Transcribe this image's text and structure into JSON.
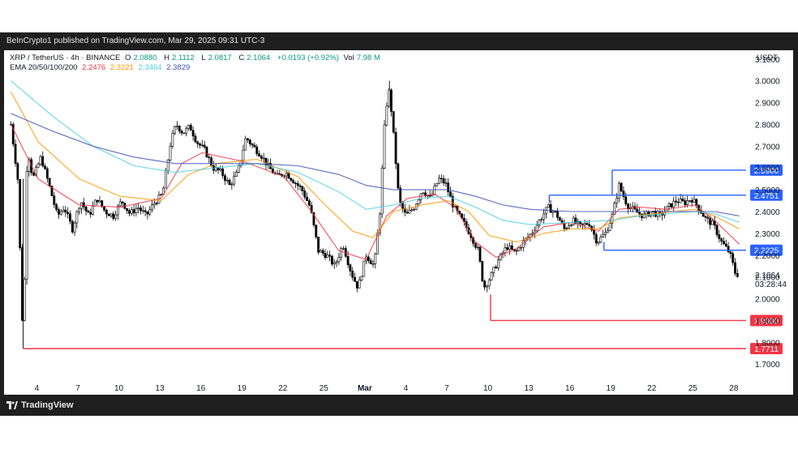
{
  "banner": "BeInCrypto1 published on TradingView.com, Mar 29, 2025 09:31 UTC-3",
  "logo_text": "TradingView",
  "legend": {
    "symbol": "XRP / TetherUS · 4h · BINANCE",
    "open_label": "O",
    "open": "2.0880",
    "high_label": "H",
    "high": "2.1112",
    "low_label": "L",
    "low": "2.0817",
    "close_label": "C",
    "close": "2.1064",
    "change": "+0.0193 (+0.92%)",
    "vol_label": "Vol",
    "vol": "7.98 M",
    "ema_label": "EMA 20/50/100/200",
    "ema20": "2.2476",
    "ema50": "2.3221",
    "ema100": "2.3464",
    "ema200": "2.3829"
  },
  "currency": "USDT",
  "colors": {
    "up": "#ffffff",
    "down": "#000000",
    "ema20": "#f23645",
    "ema50": "#ff9800",
    "ema100": "#4dd0e1",
    "ema200": "#3f51b5",
    "resistance": "#2962ff",
    "support": "#f23645"
  },
  "chart_data": {
    "type": "candlestick",
    "timeframe": "4h",
    "ylim": [
      1.66,
      3.14
    ],
    "y_ticks": [
      "3.1000",
      "3.0000",
      "2.9000",
      "2.8000",
      "2.7000",
      "2.6000",
      "2.5000",
      "2.4000",
      "2.3000",
      "2.2000",
      "2.1000",
      "2.0000",
      "1.9000",
      "1.8000",
      "1.7000"
    ],
    "x_ticks": [
      "4",
      "7",
      "10",
      "13",
      "16",
      "19",
      "22",
      "25",
      "Mar",
      "4",
      "7",
      "10",
      "13",
      "16",
      "19",
      "22",
      "25",
      "28"
    ],
    "x_tick_pos": [
      1.9,
      4.9,
      7.9,
      10.9,
      13.9,
      16.9,
      19.9,
      22.9,
      25.9,
      28.9,
      31.9,
      34.9,
      37.9,
      40.9,
      43.9,
      46.9,
      49.9,
      52.9
    ],
    "x_range": [
      -0.5,
      53.8
    ],
    "price_path": [
      [
        0,
        2.8
      ],
      [
        0.5,
        2.55
      ],
      [
        0.9,
        1.78
      ],
      [
        1.2,
        2.7
      ],
      [
        1.6,
        2.55
      ],
      [
        2.2,
        2.65
      ],
      [
        2.8,
        2.52
      ],
      [
        3.4,
        2.38
      ],
      [
        3.9,
        2.42
      ],
      [
        4.5,
        2.32
      ],
      [
        5.1,
        2.45
      ],
      [
        5.7,
        2.38
      ],
      [
        6.3,
        2.46
      ],
      [
        6.9,
        2.4
      ],
      [
        7.5,
        2.38
      ],
      [
        8.1,
        2.45
      ],
      [
        8.7,
        2.39
      ],
      [
        9.3,
        2.42
      ],
      [
        9.9,
        2.38
      ],
      [
        10.5,
        2.44
      ],
      [
        11.1,
        2.48
      ],
      [
        11.7,
        2.72
      ],
      [
        12.1,
        2.8
      ],
      [
        12.6,
        2.76
      ],
      [
        13.1,
        2.79
      ],
      [
        13.6,
        2.72
      ],
      [
        14.2,
        2.68
      ],
      [
        14.8,
        2.6
      ],
      [
        15.4,
        2.58
      ],
      [
        16.0,
        2.52
      ],
      [
        16.6,
        2.58
      ],
      [
        17.2,
        2.74
      ],
      [
        17.7,
        2.7
      ],
      [
        18.3,
        2.66
      ],
      [
        18.9,
        2.6
      ],
      [
        19.5,
        2.56
      ],
      [
        20.1,
        2.58
      ],
      [
        20.7,
        2.54
      ],
      [
        21.3,
        2.5
      ],
      [
        21.9,
        2.42
      ],
      [
        22.5,
        2.22
      ],
      [
        23.1,
        2.2
      ],
      [
        23.7,
        2.15
      ],
      [
        24.3,
        2.25
      ],
      [
        24.9,
        2.12
      ],
      [
        25.4,
        2.05
      ],
      [
        26.0,
        2.2
      ],
      [
        26.6,
        2.15
      ],
      [
        27.0,
        2.4
      ],
      [
        27.4,
        2.86
      ],
      [
        27.7,
        2.96
      ],
      [
        28.0,
        2.75
      ],
      [
        28.4,
        2.45
      ],
      [
        28.9,
        2.38
      ],
      [
        29.5,
        2.42
      ],
      [
        30.1,
        2.5
      ],
      [
        30.7,
        2.46
      ],
      [
        31.3,
        2.55
      ],
      [
        31.8,
        2.53
      ],
      [
        32.4,
        2.42
      ],
      [
        33.0,
        2.36
      ],
      [
        33.6,
        2.3
      ],
      [
        34.2,
        2.22
      ],
      [
        34.6,
        2.05
      ],
      [
        35.1,
        2.1
      ],
      [
        35.7,
        2.18
      ],
      [
        36.3,
        2.24
      ],
      [
        36.9,
        2.21
      ],
      [
        37.5,
        2.26
      ],
      [
        38.1,
        2.3
      ],
      [
        38.7,
        2.36
      ],
      [
        39.3,
        2.42
      ],
      [
        39.9,
        2.39
      ],
      [
        40.5,
        2.32
      ],
      [
        41.1,
        2.36
      ],
      [
        41.7,
        2.33
      ],
      [
        42.3,
        2.35
      ],
      [
        42.9,
        2.26
      ],
      [
        43.5,
        2.3
      ],
      [
        44.0,
        2.38
      ],
      [
        44.5,
        2.52
      ],
      [
        45.1,
        2.43
      ],
      [
        45.7,
        2.4
      ],
      [
        46.3,
        2.38
      ],
      [
        46.9,
        2.4
      ],
      [
        47.5,
        2.38
      ],
      [
        48.1,
        2.42
      ],
      [
        48.7,
        2.45
      ],
      [
        49.3,
        2.44
      ],
      [
        49.8,
        2.46
      ],
      [
        50.3,
        2.42
      ],
      [
        50.8,
        2.37
      ],
      [
        51.4,
        2.34
      ],
      [
        52.0,
        2.26
      ],
      [
        52.6,
        2.21
      ],
      [
        53.0,
        2.12
      ],
      [
        53.3,
        2.1064
      ]
    ],
    "series": [
      {
        "name": "EMA 20",
        "color": "#f23645",
        "points": [
          [
            0,
            2.8
          ],
          [
            2,
            2.55
          ],
          [
            5,
            2.43
          ],
          [
            8,
            2.42
          ],
          [
            11,
            2.46
          ],
          [
            12.5,
            2.62
          ],
          [
            14,
            2.67
          ],
          [
            17,
            2.63
          ],
          [
            20,
            2.56
          ],
          [
            22,
            2.4
          ],
          [
            24,
            2.22
          ],
          [
            26,
            2.18
          ],
          [
            27.5,
            2.38
          ],
          [
            29,
            2.46
          ],
          [
            31,
            2.48
          ],
          [
            32.5,
            2.42
          ],
          [
            34,
            2.26
          ],
          [
            35.5,
            2.19
          ],
          [
            37,
            2.23
          ],
          [
            39,
            2.33
          ],
          [
            41,
            2.35
          ],
          [
            43,
            2.31
          ],
          [
            44.5,
            2.41
          ],
          [
            46,
            2.42
          ],
          [
            48,
            2.41
          ],
          [
            50,
            2.43
          ],
          [
            51.5,
            2.36
          ],
          [
            53.3,
            2.25
          ]
        ]
      },
      {
        "name": "EMA 50",
        "color": "#ff9800",
        "points": [
          [
            0,
            2.95
          ],
          [
            2,
            2.72
          ],
          [
            5,
            2.55
          ],
          [
            8,
            2.47
          ],
          [
            11,
            2.45
          ],
          [
            13,
            2.57
          ],
          [
            15,
            2.62
          ],
          [
            18,
            2.64
          ],
          [
            21,
            2.56
          ],
          [
            23,
            2.43
          ],
          [
            25,
            2.31
          ],
          [
            26.5,
            2.28
          ],
          [
            28,
            2.4
          ],
          [
            30,
            2.43
          ],
          [
            32,
            2.45
          ],
          [
            33.5,
            2.4
          ],
          [
            35,
            2.29
          ],
          [
            37,
            2.26
          ],
          [
            39,
            2.3
          ],
          [
            41,
            2.32
          ],
          [
            43,
            2.32
          ],
          [
            44.5,
            2.37
          ],
          [
            47,
            2.39
          ],
          [
            50,
            2.41
          ],
          [
            51.5,
            2.38
          ],
          [
            53.3,
            2.32
          ]
        ]
      },
      {
        "name": "EMA 100",
        "color": "#4dd0e1",
        "points": [
          [
            0,
            3.0
          ],
          [
            3,
            2.84
          ],
          [
            6,
            2.7
          ],
          [
            9,
            2.61
          ],
          [
            12,
            2.58
          ],
          [
            15,
            2.6
          ],
          [
            18,
            2.62
          ],
          [
            21,
            2.58
          ],
          [
            24,
            2.49
          ],
          [
            26,
            2.41
          ],
          [
            28,
            2.43
          ],
          [
            30,
            2.46
          ],
          [
            32,
            2.47
          ],
          [
            34,
            2.42
          ],
          [
            36,
            2.36
          ],
          [
            38,
            2.34
          ],
          [
            41,
            2.35
          ],
          [
            44,
            2.36
          ],
          [
            46,
            2.38
          ],
          [
            48,
            2.39
          ],
          [
            50,
            2.4
          ],
          [
            51.5,
            2.39
          ],
          [
            53.3,
            2.35
          ]
        ]
      },
      {
        "name": "EMA 200",
        "color": "#3f51b5",
        "points": [
          [
            0,
            2.85
          ],
          [
            3,
            2.77
          ],
          [
            6,
            2.7
          ],
          [
            9,
            2.65
          ],
          [
            12,
            2.62
          ],
          [
            15,
            2.62
          ],
          [
            18,
            2.62
          ],
          [
            21,
            2.61
          ],
          [
            24,
            2.57
          ],
          [
            26,
            2.52
          ],
          [
            28,
            2.5
          ],
          [
            30,
            2.5
          ],
          [
            32,
            2.5
          ],
          [
            34,
            2.47
          ],
          [
            36,
            2.43
          ],
          [
            38,
            2.41
          ],
          [
            41,
            2.4
          ],
          [
            44,
            2.4
          ],
          [
            46,
            2.4
          ],
          [
            48,
            2.4
          ],
          [
            50,
            2.4
          ],
          [
            51.5,
            2.4
          ],
          [
            53.3,
            2.38
          ]
        ]
      }
    ],
    "levels": [
      {
        "value": 2.59,
        "label": "2.5900",
        "color": "#2962ff",
        "x_start": 44.0
      },
      {
        "value": 2.4751,
        "label": "2.4751",
        "color": "#2962ff",
        "x_start": 39.4
      },
      {
        "value": 2.2225,
        "label": "2.2225",
        "color": "#2962ff",
        "x_start": 43.4
      },
      {
        "value": 1.9,
        "label": "1.9000",
        "color": "#f23645",
        "x_start": 35.1
      },
      {
        "value": 1.7711,
        "label": "1.7711",
        "color": "#f23645",
        "x_start": 0.9
      }
    ],
    "last_price": {
      "value": 2.1064,
      "label": "2.1064",
      "countdown": "03:28:44"
    }
  }
}
